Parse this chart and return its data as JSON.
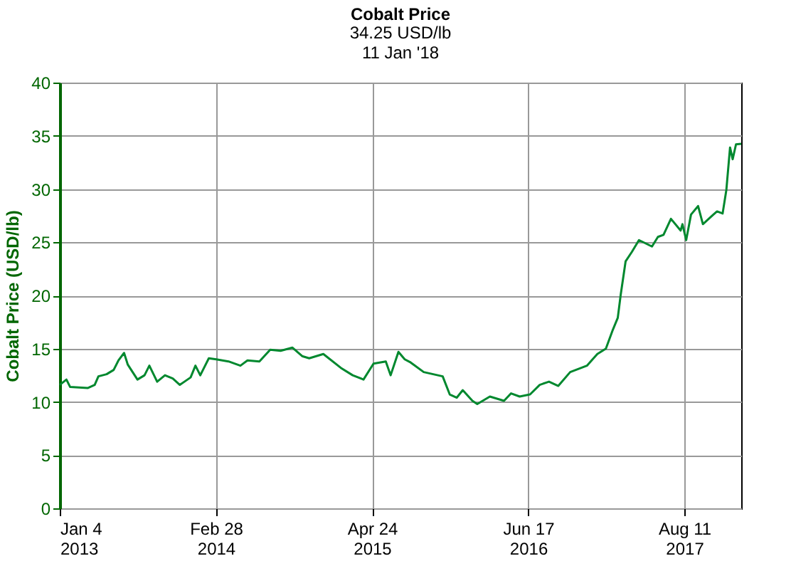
{
  "chart_data": {
    "type": "line",
    "title": "Cobalt Price",
    "subtitle": "34.25 USD/lb\n11 Jan '18",
    "ylabel": "Cobalt Price (USD/lb)",
    "x": [
      "2013-01-04",
      "2013-01-22",
      "2013-02-01",
      "2013-03-20",
      "2013-04-08",
      "2013-04-18",
      "2013-05-10",
      "2013-05-29",
      "2013-06-11",
      "2013-06-26",
      "2013-07-06",
      "2013-08-01",
      "2013-08-20",
      "2013-09-02",
      "2013-09-23",
      "2013-10-14",
      "2013-11-04",
      "2013-11-23",
      "2013-12-22",
      "2014-01-04",
      "2014-01-17",
      "2014-02-09",
      "2014-03-01",
      "2014-04-03",
      "2014-05-05",
      "2014-05-24",
      "2014-06-25",
      "2014-07-24",
      "2014-08-21",
      "2014-09-22",
      "2014-10-18",
      "2014-11-06",
      "2014-12-14",
      "2015-01-30",
      "2015-03-03",
      "2015-04-01",
      "2015-04-28",
      "2015-05-31",
      "2015-06-13",
      "2015-07-04",
      "2015-07-21",
      "2015-08-06",
      "2015-09-10",
      "2015-10-31",
      "2015-11-19",
      "2015-12-08",
      "2015-12-24",
      "2016-01-19",
      "2016-02-01",
      "2016-03-06",
      "2016-04-13",
      "2016-05-02",
      "2016-05-25",
      "2016-06-22",
      "2016-07-18",
      "2016-08-12",
      "2016-09-06",
      "2016-10-08",
      "2016-11-22",
      "2016-12-20",
      "2017-01-12",
      "2017-01-31",
      "2017-02-13",
      "2017-02-21",
      "2017-03-06",
      "2017-03-23",
      "2017-04-11",
      "2017-05-16",
      "2017-06-01",
      "2017-06-16",
      "2017-07-06",
      "2017-08-01",
      "2017-08-06",
      "2017-08-16",
      "2017-08-29",
      "2017-09-17",
      "2017-09-30",
      "2017-10-25",
      "2017-11-07",
      "2017-11-22",
      "2017-12-02",
      "2017-12-12",
      "2017-12-19",
      "2017-12-28",
      "2018-01-11"
    ],
    "series": [
      {
        "color": "#00882e",
        "values": [
          11.6,
          12.1,
          11.4,
          11.3,
          11.6,
          12.4,
          12.6,
          13.0,
          13.9,
          14.6,
          13.5,
          12.1,
          12.5,
          13.4,
          11.9,
          12.5,
          12.2,
          11.6,
          12.3,
          13.4,
          12.5,
          14.1,
          14.0,
          13.8,
          13.4,
          13.9,
          13.8,
          14.9,
          14.8,
          15.1,
          14.3,
          14.1,
          14.5,
          13.2,
          12.5,
          12.1,
          13.6,
          13.8,
          12.5,
          14.7,
          14.0,
          13.7,
          12.8,
          12.4,
          10.7,
          10.4,
          11.1,
          10.1,
          9.8,
          10.5,
          10.1,
          10.8,
          10.5,
          10.7,
          11.6,
          11.9,
          11.5,
          12.8,
          13.4,
          14.5,
          15.0,
          16.8,
          17.9,
          20.1,
          23.2,
          24.1,
          25.2,
          24.6,
          25.5,
          25.7,
          27.2,
          26.1,
          26.7,
          25.2,
          27.6,
          28.4,
          26.7,
          27.5,
          27.9,
          27.7,
          29.9,
          33.9,
          32.8,
          34.2,
          34.25
        ]
      }
    ],
    "xlim": [
      "2013-01-04",
      "2018-01-11"
    ],
    "xticks": [
      {
        "value": "2013-01-04",
        "label": "Jan 4\n2013"
      },
      {
        "value": "2014-02-28",
        "label": "Feb 28\n2014"
      },
      {
        "value": "2015-04-24",
        "label": "Apr 24\n2015"
      },
      {
        "value": "2016-06-17",
        "label": "Jun 17\n2016"
      },
      {
        "value": "2017-08-11",
        "label": "Aug 11\n2017"
      }
    ],
    "ylim": [
      0,
      40
    ],
    "yticks": [
      0,
      5,
      10,
      15,
      20,
      25,
      30,
      35,
      40
    ],
    "grid": true,
    "marker": "none",
    "line_style": "solid"
  }
}
